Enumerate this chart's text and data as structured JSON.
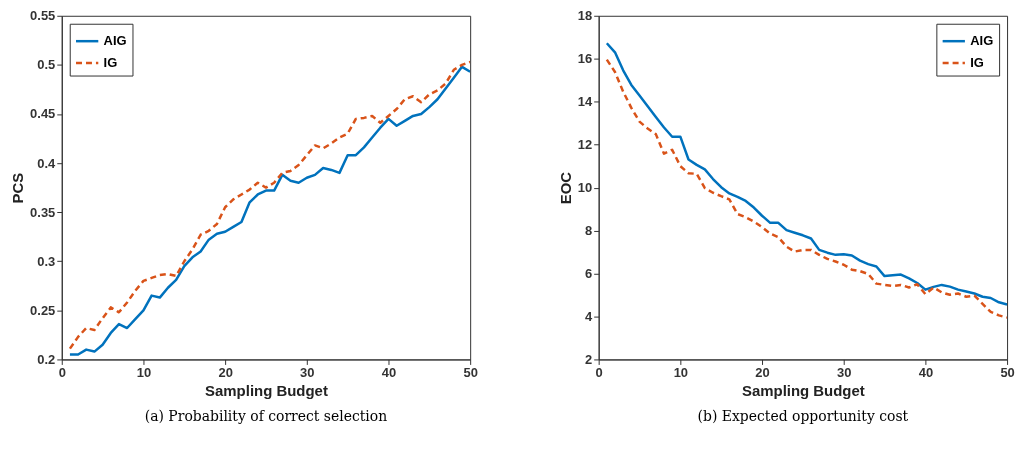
{
  "chart_data": [
    {
      "type": "line",
      "title": "(a) Probability of correct selection",
      "xlabel": "Sampling Budget",
      "ylabel": "PCS",
      "x": [
        1,
        2,
        3,
        4,
        5,
        6,
        7,
        8,
        9,
        10,
        11,
        12,
        13,
        14,
        15,
        16,
        17,
        18,
        19,
        20,
        21,
        22,
        23,
        24,
        25,
        26,
        27,
        28,
        29,
        30,
        31,
        32,
        33,
        34,
        35,
        36,
        37,
        38,
        39,
        40,
        41,
        42,
        43,
        44,
        45,
        46,
        47,
        48,
        49,
        50
      ],
      "series": [
        {
          "name": "AIG",
          "color": "#0072bd",
          "line_style": "solid",
          "values": [
            0.205,
            0.205,
            0.21,
            0.208,
            0.215,
            0.227,
            0.236,
            0.232,
            0.241,
            0.25,
            0.265,
            0.263,
            0.273,
            0.281,
            0.295,
            0.304,
            0.31,
            0.322,
            0.328,
            0.33,
            0.335,
            0.34,
            0.36,
            0.368,
            0.372,
            0.372,
            0.388,
            0.382,
            0.38,
            0.385,
            0.388,
            0.395,
            0.393,
            0.39,
            0.408,
            0.408,
            0.416,
            0.426,
            0.436,
            0.445,
            0.438,
            0.443,
            0.448,
            0.45,
            0.457,
            0.465,
            0.476,
            0.487,
            0.498,
            0.493
          ]
        },
        {
          "name": "IG",
          "color": "#d95319",
          "line_style": "dashed",
          "values": [
            0.211,
            0.223,
            0.232,
            0.23,
            0.242,
            0.253,
            0.248,
            0.258,
            0.27,
            0.28,
            0.283,
            0.286,
            0.287,
            0.285,
            0.3,
            0.312,
            0.327,
            0.331,
            0.338,
            0.355,
            0.363,
            0.368,
            0.373,
            0.38,
            0.375,
            0.38,
            0.39,
            0.392,
            0.398,
            0.408,
            0.418,
            0.415,
            0.42,
            0.426,
            0.43,
            0.445,
            0.446,
            0.448,
            0.441,
            0.448,
            0.455,
            0.465,
            0.468,
            0.462,
            0.47,
            0.474,
            0.481,
            0.495,
            0.5,
            0.503
          ]
        }
      ],
      "xlim": [
        0,
        50
      ],
      "xticks": [
        0,
        10,
        20,
        30,
        40,
        50
      ],
      "ylim": [
        0.2,
        0.55
      ],
      "yticks": [
        0.2,
        0.25,
        0.3,
        0.35,
        0.4,
        0.45,
        0.5,
        0.55
      ],
      "grid": false,
      "legend": "top left",
      "marker": "none"
    },
    {
      "type": "line",
      "title": "(b) Expected opportunity cost",
      "xlabel": "Sampling Budget",
      "ylabel": "EOC",
      "x": [
        1,
        2,
        3,
        4,
        5,
        6,
        7,
        8,
        9,
        10,
        11,
        12,
        13,
        14,
        15,
        16,
        17,
        18,
        19,
        20,
        21,
        22,
        23,
        24,
        25,
        26,
        27,
        28,
        29,
        30,
        31,
        32,
        33,
        34,
        35,
        36,
        37,
        38,
        39,
        40,
        41,
        42,
        43,
        44,
        45,
        46,
        47,
        48,
        49,
        50
      ],
      "series": [
        {
          "name": "AIG",
          "color": "#0072bd",
          "line_style": "solid",
          "values": [
            16.72,
            16.3,
            15.46,
            14.78,
            14.29,
            13.79,
            13.29,
            12.8,
            12.37,
            12.37,
            11.31,
            11.06,
            10.85,
            10.4,
            10.02,
            9.73,
            9.57,
            9.38,
            9.07,
            8.69,
            8.36,
            8.36,
            8.02,
            7.9,
            7.78,
            7.63,
            7.1,
            6.97,
            6.87,
            6.9,
            6.84,
            6.6,
            6.44,
            6.33,
            5.88,
            5.92,
            5.95,
            5.77,
            5.56,
            5.25,
            5.38,
            5.47,
            5.39,
            5.25,
            5.16,
            5.07,
            4.92,
            4.86,
            4.66,
            4.56
          ]
        },
        {
          "name": "IG",
          "color": "#d95319",
          "line_style": "dashed",
          "values": [
            15.96,
            15.38,
            14.47,
            13.71,
            13.07,
            12.75,
            12.49,
            11.58,
            11.76,
            11.0,
            10.67,
            10.64,
            9.98,
            9.76,
            9.6,
            9.45,
            8.77,
            8.62,
            8.42,
            8.16,
            7.86,
            7.69,
            7.25,
            7.02,
            7.1,
            7.1,
            6.87,
            6.68,
            6.56,
            6.41,
            6.18,
            6.11,
            5.98,
            5.53,
            5.47,
            5.42,
            5.47,
            5.35,
            5.5,
            5.04,
            5.35,
            5.12,
            5.01,
            5.07,
            4.92,
            4.97,
            4.59,
            4.21,
            4.05,
            3.95
          ]
        }
      ],
      "xlim": [
        0,
        50
      ],
      "xticks": [
        0,
        10,
        20,
        30,
        40,
        50
      ],
      "ylim": [
        2,
        18
      ],
      "yticks": [
        2,
        4,
        6,
        8,
        10,
        12,
        14,
        16,
        18
      ],
      "grid": false,
      "legend": "top right",
      "marker": "none"
    }
  ]
}
